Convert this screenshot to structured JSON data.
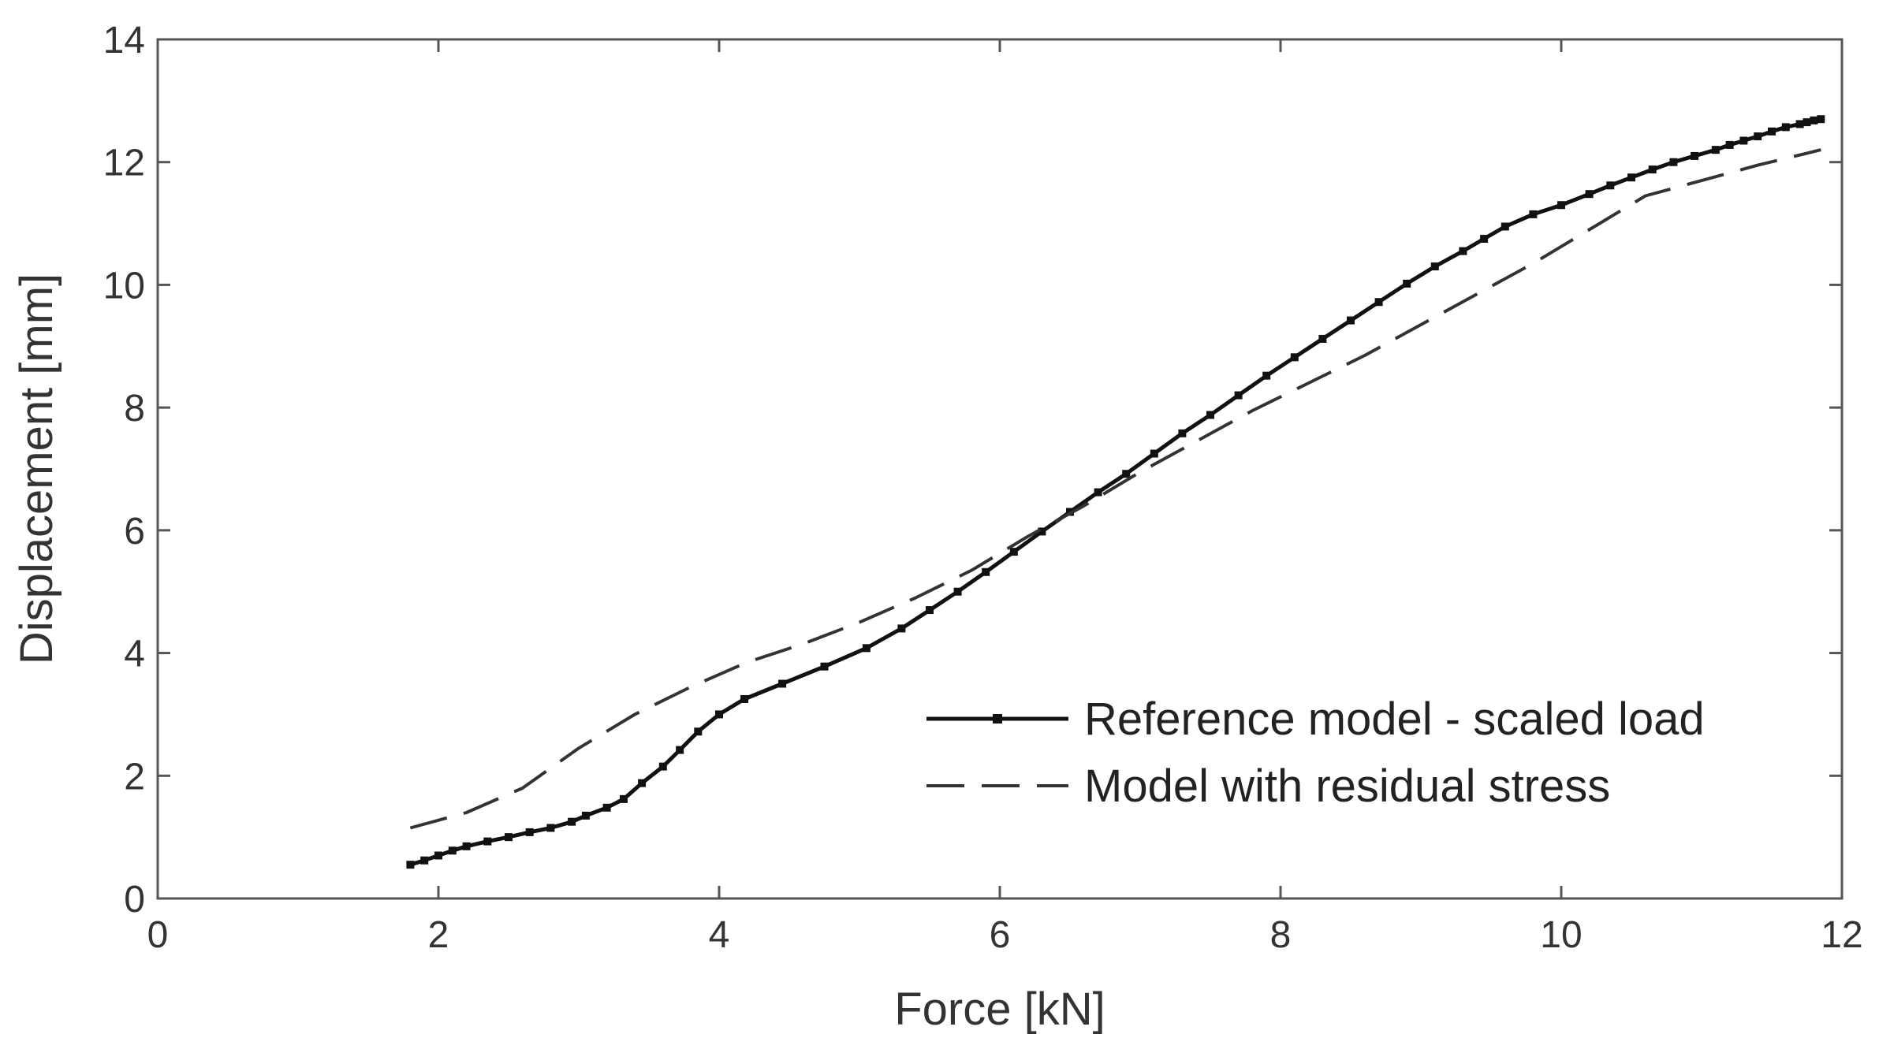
{
  "chart_data": {
    "type": "line",
    "xlabel": "Force [kN]",
    "ylabel": "Displacement [mm]",
    "xlim": [
      0,
      12
    ],
    "ylim": [
      0,
      14
    ],
    "xticks": [
      0,
      2,
      4,
      6,
      8,
      10,
      12
    ],
    "yticks": [
      0,
      2,
      4,
      6,
      8,
      10,
      12,
      14
    ],
    "grid": false,
    "legend_position": "bottom-right",
    "series": [
      {
        "name": "Reference model - scaled load",
        "style": "solid-with-markers",
        "color": "#111111",
        "x": [
          1.8,
          1.9,
          2.0,
          2.1,
          2.2,
          2.35,
          2.5,
          2.65,
          2.8,
          2.95,
          3.05,
          3.2,
          3.32,
          3.45,
          3.6,
          3.72,
          3.85,
          4.0,
          4.18,
          4.45,
          4.75,
          5.05,
          5.3,
          5.5,
          5.7,
          5.9,
          6.1,
          6.3,
          6.5,
          6.7,
          6.9,
          7.1,
          7.3,
          7.5,
          7.7,
          7.9,
          8.1,
          8.3,
          8.5,
          8.7,
          8.9,
          9.1,
          9.3,
          9.45,
          9.6,
          9.8,
          10.0,
          10.2,
          10.35,
          10.5,
          10.65,
          10.8,
          10.95,
          11.1,
          11.2,
          11.3,
          11.4,
          11.5,
          11.6,
          11.7,
          11.75,
          11.8,
          11.85
        ],
        "y": [
          0.55,
          0.62,
          0.7,
          0.78,
          0.85,
          0.93,
          1.0,
          1.08,
          1.15,
          1.25,
          1.35,
          1.48,
          1.62,
          1.88,
          2.15,
          2.42,
          2.72,
          3.0,
          3.25,
          3.5,
          3.78,
          4.08,
          4.4,
          4.7,
          5.0,
          5.32,
          5.65,
          5.98,
          6.3,
          6.62,
          6.92,
          7.25,
          7.58,
          7.88,
          8.2,
          8.52,
          8.82,
          9.12,
          9.42,
          9.72,
          10.02,
          10.3,
          10.55,
          10.75,
          10.95,
          11.15,
          11.3,
          11.48,
          11.62,
          11.75,
          11.88,
          12.0,
          12.1,
          12.2,
          12.28,
          12.35,
          12.42,
          12.5,
          12.57,
          12.62,
          12.65,
          12.68,
          12.7
        ]
      },
      {
        "name": "Model with residual stress",
        "style": "dashed",
        "color": "#333333",
        "x": [
          1.8,
          2.2,
          2.6,
          3.0,
          3.4,
          3.8,
          4.2,
          4.6,
          5.0,
          5.4,
          5.8,
          6.2,
          6.6,
          7.0,
          7.4,
          7.8,
          8.2,
          8.6,
          9.0,
          9.4,
          9.8,
          10.2,
          10.6,
          11.0,
          11.4,
          11.85
        ],
        "y": [
          1.15,
          1.4,
          1.8,
          2.45,
          3.0,
          3.45,
          3.85,
          4.15,
          4.5,
          4.9,
          5.35,
          5.9,
          6.4,
          6.95,
          7.45,
          7.95,
          8.4,
          8.85,
          9.35,
          9.85,
          10.35,
          10.9,
          11.45,
          11.7,
          11.95,
          12.2
        ]
      }
    ]
  }
}
